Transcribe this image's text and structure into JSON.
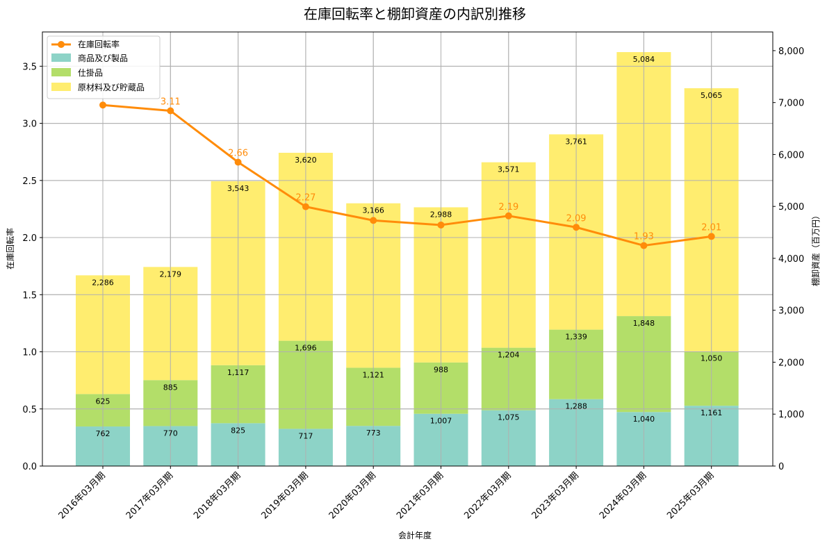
{
  "chart_data": {
    "type": "bar",
    "stacked": true,
    "title": "在庫回転率と棚卸資産の内訳別推移",
    "xlabel": "会計年度",
    "ylabel_left": "在庫回転率",
    "ylabel_right": "棚卸資産（百万円）",
    "categories": [
      "2016年03月期",
      "2017年03月期",
      "2018年03月期",
      "2019年03月期",
      "2020年03月期",
      "2021年03月期",
      "2022年03月期",
      "2023年03月期",
      "2024年03月期",
      "2025年03月期"
    ],
    "series": [
      {
        "name": "商品及び製品",
        "color": "#8dd3c7",
        "values": [
          762,
          770,
          825,
          717,
          773,
          1007,
          1075,
          1288,
          1040,
          1161
        ],
        "labels": [
          "762",
          "770",
          "825",
          "717",
          "773",
          "1,007",
          "1,075",
          "1,288",
          "1,040",
          "1,161"
        ]
      },
      {
        "name": "仕掛品",
        "color": "#b3de69",
        "values": [
          625,
          885,
          1117,
          1696,
          1121,
          988,
          1204,
          1339,
          1848,
          1050
        ],
        "labels": [
          "625",
          "885",
          "1,117",
          "1,696",
          "1,121",
          "988",
          "1,204",
          "1,339",
          "1,848",
          "1,050"
        ]
      },
      {
        "name": "原材料及び貯蔵品",
        "color": "#ffed6f",
        "values": [
          2286,
          2179,
          3543,
          3620,
          3166,
          2988,
          3571,
          3761,
          5084,
          5065
        ],
        "labels": [
          "2,286",
          "2,179",
          "3,543",
          "3,620",
          "3,166",
          "2,988",
          "3,571",
          "3,761",
          "5,084",
          "5,065"
        ]
      }
    ],
    "line": {
      "name": "在庫回転率",
      "color": "#ff8c0a",
      "values": [
        3.16,
        3.11,
        2.66,
        2.27,
        2.15,
        2.11,
        2.19,
        2.09,
        1.93,
        2.01
      ],
      "labels": [
        "",
        "3.11",
        "2.66",
        "2.27",
        "",
        "",
        "2.19",
        "2.09",
        "1.93",
        "2.01"
      ]
    },
    "ylim_left": [
      0,
      3.8
    ],
    "ylim_right": [
      0,
      8360
    ],
    "yticks_left": [
      0.0,
      0.5,
      1.0,
      1.5,
      2.0,
      2.5,
      3.0,
      3.5
    ],
    "yticks_left_labels": [
      "0.0",
      "0.5",
      "1.0",
      "1.5",
      "2.0",
      "2.5",
      "3.0",
      "3.5"
    ],
    "yticks_right": [
      0,
      1000,
      2000,
      3000,
      4000,
      5000,
      6000,
      7000,
      8000
    ],
    "yticks_right_labels": [
      "0",
      "1,000",
      "2,000",
      "3,000",
      "4,000",
      "5,000",
      "6,000",
      "7,000",
      "8,000"
    ],
    "grid": true,
    "legend": {
      "position": "top-left",
      "entries": [
        "在庫回転率",
        "商品及び製品",
        "仕掛品",
        "原材料及び貯蔵品"
      ]
    }
  }
}
